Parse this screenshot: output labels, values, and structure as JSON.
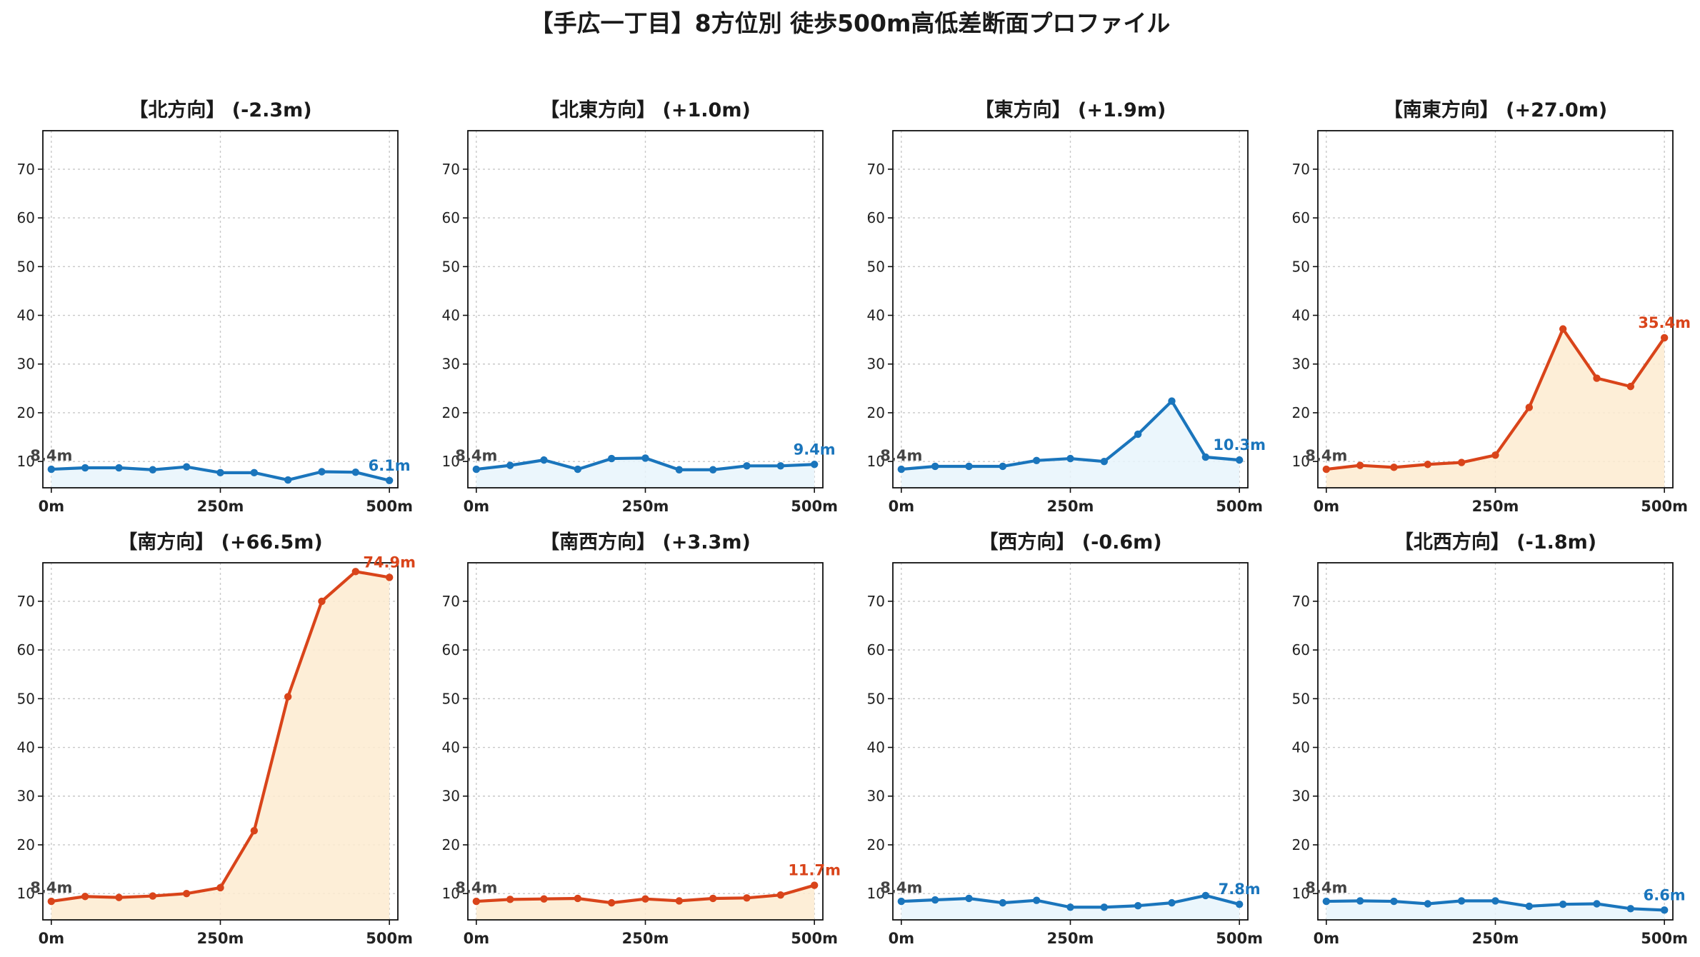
{
  "title": "【手広一丁目】8方位別 徒歩500m高低差断面プロファイル",
  "colors": {
    "down": "#1a75bc",
    "up": "#d9441a",
    "down_fill": "#e8f5fb",
    "up_fill": "#fdebd0"
  },
  "chart_data": [
    {
      "type": "line",
      "title": "【北方向】 (-2.3m)",
      "trend": "down",
      "x": [
        "0m",
        "50m",
        "100m",
        "150m",
        "200m",
        "250m",
        "300m",
        "350m",
        "400m",
        "450m",
        "500m"
      ],
      "values": [
        8.4,
        8.7,
        8.7,
        8.3,
        8.9,
        7.7,
        7.7,
        6.2,
        7.9,
        7.8,
        6.1
      ],
      "start_label": "8.4m",
      "end_label": "6.1m",
      "xticks": [
        "0m",
        "250m",
        "500m"
      ],
      "yticks": [
        10,
        20,
        30,
        40,
        50,
        60,
        70
      ],
      "ylim": [
        4.6,
        77.9
      ],
      "xlim": [
        -12.5,
        512.5
      ],
      "grid": true
    },
    {
      "type": "line",
      "title": "【北東方向】 (+1.0m)",
      "trend": "down",
      "x": [
        "0m",
        "50m",
        "100m",
        "150m",
        "200m",
        "250m",
        "300m",
        "350m",
        "400m",
        "450m",
        "500m"
      ],
      "values": [
        8.4,
        9.2,
        10.3,
        8.4,
        10.6,
        10.7,
        8.3,
        8.3,
        9.1,
        9.1,
        9.4
      ],
      "start_label": "8.4m",
      "end_label": "9.4m",
      "xticks": [
        "0m",
        "250m",
        "500m"
      ],
      "yticks": [
        10,
        20,
        30,
        40,
        50,
        60,
        70
      ],
      "ylim": [
        4.6,
        77.9
      ],
      "xlim": [
        -12.5,
        512.5
      ],
      "grid": true
    },
    {
      "type": "line",
      "title": "【東方向】 (+1.9m)",
      "trend": "down",
      "x": [
        "0m",
        "50m",
        "100m",
        "150m",
        "200m",
        "250m",
        "300m",
        "350m",
        "400m",
        "450m",
        "500m"
      ],
      "values": [
        8.4,
        9.0,
        9.0,
        9.0,
        10.2,
        10.6,
        10.0,
        15.6,
        22.4,
        10.9,
        10.3
      ],
      "start_label": "8.4m",
      "end_label": "10.3m",
      "xticks": [
        "0m",
        "250m",
        "500m"
      ],
      "yticks": [
        10,
        20,
        30,
        40,
        50,
        60,
        70
      ],
      "ylim": [
        4.6,
        77.9
      ],
      "xlim": [
        -12.5,
        512.5
      ],
      "grid": true
    },
    {
      "type": "line",
      "title": "【南東方向】 (+27.0m)",
      "trend": "up",
      "x": [
        "0m",
        "50m",
        "100m",
        "150m",
        "200m",
        "250m",
        "300m",
        "350m",
        "400m",
        "450m",
        "500m"
      ],
      "values": [
        8.4,
        9.2,
        8.8,
        9.4,
        9.8,
        11.3,
        21.1,
        37.2,
        27.1,
        25.4,
        35.4
      ],
      "start_label": "8.4m",
      "end_label": "35.4m",
      "xticks": [
        "0m",
        "250m",
        "500m"
      ],
      "yticks": [
        10,
        20,
        30,
        40,
        50,
        60,
        70
      ],
      "ylim": [
        4.6,
        77.9
      ],
      "xlim": [
        -12.5,
        512.5
      ],
      "grid": true
    },
    {
      "type": "line",
      "title": "【南方向】 (+66.5m)",
      "trend": "up",
      "x": [
        "0m",
        "50m",
        "100m",
        "150m",
        "200m",
        "250m",
        "300m",
        "350m",
        "400m",
        "450m",
        "500m"
      ],
      "values": [
        8.4,
        9.4,
        9.2,
        9.5,
        10.0,
        11.2,
        22.9,
        50.4,
        70.0,
        76.1,
        74.9
      ],
      "start_label": "8.4m",
      "end_label": "74.9m",
      "xticks": [
        "0m",
        "250m",
        "500m"
      ],
      "yticks": [
        10,
        20,
        30,
        40,
        50,
        60,
        70
      ],
      "ylim": [
        4.6,
        77.9
      ],
      "xlim": [
        -12.5,
        512.5
      ],
      "grid": true
    },
    {
      "type": "line",
      "title": "【南西方向】 (+3.3m)",
      "trend": "up",
      "x": [
        "0m",
        "50m",
        "100m",
        "150m",
        "200m",
        "250m",
        "300m",
        "350m",
        "400m",
        "450m",
        "500m"
      ],
      "values": [
        8.4,
        8.8,
        8.9,
        9.0,
        8.1,
        8.9,
        8.5,
        9.0,
        9.1,
        9.7,
        11.7
      ],
      "start_label": "8.4m",
      "end_label": "11.7m",
      "xticks": [
        "0m",
        "250m",
        "500m"
      ],
      "yticks": [
        10,
        20,
        30,
        40,
        50,
        60,
        70
      ],
      "ylim": [
        4.6,
        77.9
      ],
      "xlim": [
        -12.5,
        512.5
      ],
      "grid": true
    },
    {
      "type": "line",
      "title": "【西方向】 (-0.6m)",
      "trend": "down",
      "x": [
        "0m",
        "50m",
        "100m",
        "150m",
        "200m",
        "250m",
        "300m",
        "350m",
        "400m",
        "450m",
        "500m"
      ],
      "values": [
        8.4,
        8.7,
        9.0,
        8.1,
        8.6,
        7.2,
        7.2,
        7.5,
        8.1,
        9.6,
        7.8
      ],
      "start_label": "8.4m",
      "end_label": "7.8m",
      "xticks": [
        "0m",
        "250m",
        "500m"
      ],
      "yticks": [
        10,
        20,
        30,
        40,
        50,
        60,
        70
      ],
      "ylim": [
        4.6,
        77.9
      ],
      "xlim": [
        -12.5,
        512.5
      ],
      "grid": true
    },
    {
      "type": "line",
      "title": "【北西方向】 (-1.8m)",
      "trend": "down",
      "x": [
        "0m",
        "50m",
        "100m",
        "150m",
        "200m",
        "250m",
        "300m",
        "350m",
        "400m",
        "450m",
        "500m"
      ],
      "values": [
        8.4,
        8.5,
        8.4,
        7.9,
        8.5,
        8.5,
        7.4,
        7.8,
        7.9,
        6.9,
        6.6
      ],
      "start_label": "8.4m",
      "end_label": "6.6m",
      "xticks": [
        "0m",
        "250m",
        "500m"
      ],
      "yticks": [
        10,
        20,
        30,
        40,
        50,
        60,
        70
      ],
      "ylim": [
        4.6,
        77.9
      ],
      "xlim": [
        -12.5,
        512.5
      ],
      "grid": true
    }
  ]
}
